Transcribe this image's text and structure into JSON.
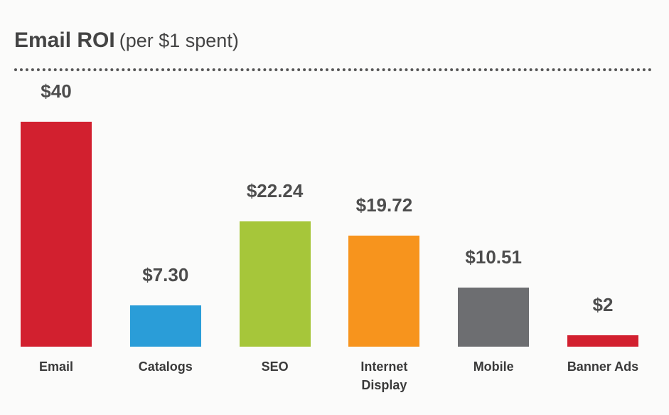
{
  "chart_data": {
    "type": "bar",
    "title": "Email ROI",
    "subtitle": "(per $1 spent)",
    "categories": [
      "Email",
      "Catalogs",
      "SEO",
      "Internet Display",
      "Mobile",
      "Banner Ads"
    ],
    "values": [
      40,
      7.3,
      22.24,
      19.72,
      10.51,
      2
    ],
    "value_labels": [
      "$40",
      "$7.30",
      "$22.24",
      "$19.72",
      "$10.51",
      "$2"
    ],
    "colors": [
      "#d2202f",
      "#2a9dd8",
      "#a6c63a",
      "#f7941d",
      "#6d6e71",
      "#d2202f"
    ]
  }
}
